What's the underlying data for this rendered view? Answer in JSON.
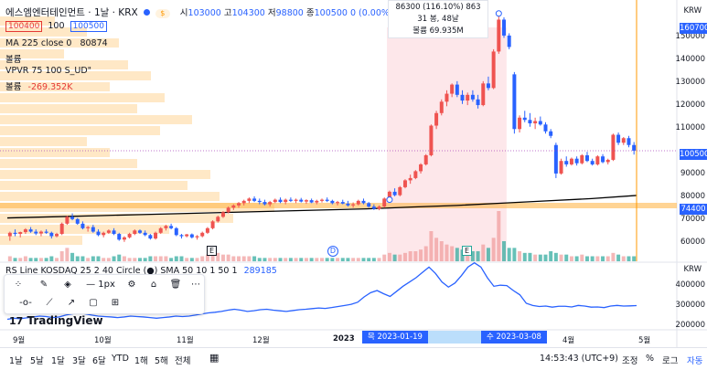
{
  "header": {
    "symbol": "에스엠엔터테인먼트 · 1날 · KRX",
    "open_label": "시",
    "open": "103000",
    "high_label": "고",
    "high": "104300",
    "low_label": "저",
    "low": "98800",
    "close_label": "종",
    "close": "100500",
    "change": "0 (0.00%)",
    "sell_price": "100400",
    "spread": "100",
    "buy_price": "100500",
    "currency": "KRW"
  },
  "indicators": {
    "ma": "MA 225 close 0",
    "ma_value": "80874",
    "volume_label_1": "볼륨",
    "vpvr": "VPVR 75 100 S_UD\"",
    "volume_label_2": "볼륨",
    "vpvr_value": "-269.352K",
    "rs_line": "RS Line KOSDAQ 25 2 40 Circle (●) SMA 50 10 1 50 1",
    "rs_value": "289185"
  },
  "tooltip": {
    "line1": "86300 (116.10%) 863",
    "line2": "31 봉, 48날",
    "line3": "볼륨 69.935M"
  },
  "price_axis": {
    "ticks": [
      "150000",
      "140000",
      "130000",
      "120000",
      "110000",
      "90000",
      "80000",
      "70000",
      "60000"
    ],
    "tag_high": "160700",
    "tag_last": "100500",
    "tag_low": "74400"
  },
  "rs_axis": {
    "unit": "KRW",
    "ticks": [
      "400000",
      "300000",
      "200000"
    ]
  },
  "time_axis": {
    "labels": [
      "9월",
      "10월",
      "11월",
      "12월",
      "2023",
      "4월",
      "5월"
    ],
    "range_start": "목 2023-01-19",
    "range_end": "수 2023-03-08",
    "partial": "월"
  },
  "events": {
    "e1": "E",
    "d1": "D",
    "e2": "E"
  },
  "toolbar_icons": [
    "circle-path-icon",
    "pencil-icon",
    "fill-icon",
    "line-width-icon",
    "settings-icon",
    "lock-icon",
    "trash-icon",
    "more-icon",
    "line-tool-icon",
    "trendline-icon",
    "ray-icon",
    "rect-icon",
    "crosshair-box-icon"
  ],
  "toolbar": {
    "width_label": "1px"
  },
  "logo": "TradingView",
  "bottom": {
    "timeframes": [
      "1날",
      "5날",
      "1달",
      "3달",
      "6달",
      "YTD",
      "1해",
      "5해",
      "전체"
    ],
    "clock": "14:53:43 (UTC+9)",
    "adj": "조정",
    "pct": "%",
    "log": "로그",
    "auto": "자동"
  },
  "colors": {
    "up": "#ef5350",
    "down": "#2962ff",
    "ma": "#000000",
    "vpvr": "#ffcc80",
    "range": "#fde7ea",
    "rs": "#2962ff"
  },
  "chart_data": {
    "type": "candlestick",
    "price_candles": [
      [
        63000,
        65000,
        61000,
        64500
      ],
      [
        64500,
        66000,
        63000,
        64000
      ],
      [
        64000,
        65000,
        62500,
        64800
      ],
      [
        64800,
        66500,
        64000,
        66000
      ],
      [
        66000,
        67000,
        64500,
        65000
      ],
      [
        65000,
        66000,
        63500,
        64200
      ],
      [
        64200,
        65500,
        63000,
        65000
      ],
      [
        65000,
        66000,
        64000,
        64500
      ],
      [
        64500,
        65000,
        62000,
        63000
      ],
      [
        63000,
        64500,
        62500,
        64000
      ],
      [
        64000,
        69000,
        63500,
        68500
      ],
      [
        68500,
        72000,
        68000,
        71500
      ],
      [
        71500,
        73000,
        70000,
        70500
      ],
      [
        70500,
        71000,
        68000,
        68500
      ],
      [
        68500,
        69500,
        66000,
        66500
      ],
      [
        66500,
        67500,
        65000,
        67000
      ],
      [
        67000,
        68000,
        64500,
        65000
      ],
      [
        65000,
        66000,
        63000,
        63500
      ],
      [
        63500,
        65000,
        62500,
        64500
      ],
      [
        64500,
        66000,
        64000,
        65500
      ],
      [
        65500,
        66500,
        63500,
        64000
      ],
      [
        64000,
        64500,
        61000,
        61500
      ],
      [
        61500,
        63000,
        60500,
        62500
      ],
      [
        62500,
        64500,
        62000,
        64000
      ],
      [
        64000,
        66000,
        63500,
        65500
      ],
      [
        65500,
        66000,
        64000,
        64500
      ],
      [
        64500,
        65500,
        63000,
        63500
      ],
      [
        63500,
        64000,
        61500,
        62000
      ],
      [
        62000,
        65000,
        61500,
        64500
      ],
      [
        64500,
        67000,
        64000,
        66500
      ],
      [
        66500,
        68000,
        65500,
        67500
      ],
      [
        67500,
        68500,
        66000,
        66500
      ],
      [
        66500,
        67000,
        63000,
        63500
      ],
      [
        63500,
        64000,
        62000,
        63000
      ],
      [
        63000,
        64000,
        62500,
        63800
      ],
      [
        63800,
        64200,
        62000,
        62500
      ],
      [
        62500,
        63500,
        61500,
        63000
      ],
      [
        63000,
        65000,
        62500,
        64500
      ],
      [
        64500,
        67000,
        64000,
        66500
      ],
      [
        66500,
        70000,
        66000,
        69500
      ],
      [
        69500,
        72000,
        69000,
        71500
      ],
      [
        71500,
        74000,
        71000,
        73500
      ],
      [
        73500,
        76000,
        73000,
        75500
      ],
      [
        75500,
        77000,
        74500,
        76500
      ],
      [
        76500,
        78000,
        75500,
        77500
      ],
      [
        77500,
        79000,
        76500,
        78500
      ],
      [
        78500,
        80000,
        77500,
        79500
      ],
      [
        79500,
        80500,
        78000,
        78500
      ],
      [
        78500,
        79500,
        77000,
        78000
      ],
      [
        78000,
        79000,
        76500,
        77000
      ],
      [
        77000,
        78500,
        76000,
        78000
      ],
      [
        78000,
        79500,
        77500,
        79000
      ],
      [
        79000,
        80000,
        77500,
        78000
      ],
      [
        78000,
        79500,
        77000,
        79000
      ],
      [
        79000,
        80000,
        78000,
        78500
      ],
      [
        78500,
        79500,
        77500,
        79000
      ],
      [
        79000,
        79800,
        77800,
        78200
      ],
      [
        78200,
        79200,
        77200,
        78800
      ],
      [
        78800,
        79500,
        77500,
        77800
      ],
      [
        77800,
        79000,
        77000,
        78500
      ],
      [
        78500,
        79500,
        77800,
        79000
      ],
      [
        79000,
        80000,
        78000,
        78500
      ],
      [
        78500,
        79000,
        77000,
        77500
      ],
      [
        77500,
        78500,
        76500,
        78000
      ],
      [
        78000,
        79000,
        77000,
        77300
      ],
      [
        77300,
        78500,
        76000,
        76500
      ],
      [
        76500,
        77800,
        75500,
        77000
      ],
      [
        77000,
        79000,
        76500,
        78500
      ],
      [
        78500,
        79500,
        77000,
        77500
      ],
      [
        77500,
        78000,
        75500,
        76000
      ],
      [
        76000,
        77000,
        74500,
        75000
      ],
      [
        75000,
        76500,
        74400,
        76000
      ],
      [
        76000,
        80000,
        75500,
        79500
      ],
      [
        79500,
        83000,
        79000,
        82500
      ],
      [
        82500,
        84000,
        80500,
        81000
      ],
      [
        81000,
        85000,
        80500,
        84500
      ],
      [
        84500,
        88000,
        84000,
        87500
      ],
      [
        87500,
        90000,
        86000,
        88500
      ],
      [
        88500,
        92000,
        88000,
        91500
      ],
      [
        91500,
        95000,
        90500,
        94500
      ],
      [
        94500,
        99000,
        94000,
        98500
      ],
      [
        98500,
        112000,
        98000,
        111500
      ],
      [
        111500,
        118000,
        110000,
        117000
      ],
      [
        117000,
        123000,
        116000,
        122000
      ],
      [
        122000,
        127000,
        120000,
        125500
      ],
      [
        125500,
        130000,
        124000,
        129500
      ],
      [
        129500,
        131000,
        124000,
        125000
      ],
      [
        125000,
        127000,
        121000,
        122500
      ],
      [
        122500,
        126000,
        120500,
        125000
      ],
      [
        125000,
        127000,
        122000,
        123000
      ],
      [
        123000,
        125000,
        119000,
        120500
      ],
      [
        120500,
        131000,
        120000,
        130000
      ],
      [
        130000,
        133000,
        127000,
        128000
      ],
      [
        128000,
        145000,
        127500,
        144000
      ],
      [
        144000,
        160700,
        143000,
        158000
      ],
      [
        158000,
        159000,
        150000,
        151000
      ],
      [
        151000,
        152000,
        145000,
        146000
      ],
      [
        134000,
        135000,
        108000,
        110000
      ],
      [
        110000,
        116000,
        108500,
        115000
      ],
      [
        115000,
        118000,
        113000,
        114000
      ],
      [
        114000,
        117000,
        111000,
        112500
      ],
      [
        112500,
        115000,
        110000,
        113500
      ],
      [
        113500,
        115500,
        111500,
        112000
      ],
      [
        112000,
        113000,
        108000,
        109000
      ],
      [
        109000,
        110000,
        106000,
        107000
      ],
      [
        103000,
        104000,
        88500,
        90500
      ],
      [
        90500,
        97000,
        90000,
        96000
      ],
      [
        96000,
        98000,
        93500,
        94500
      ],
      [
        94500,
        97500,
        94000,
        97000
      ],
      [
        97000,
        98000,
        94000,
        95000
      ],
      [
        95000,
        99000,
        94500,
        98500
      ],
      [
        98500,
        100000,
        95500,
        96000
      ],
      [
        96000,
        97000,
        94000,
        94500
      ],
      [
        94500,
        98500,
        94000,
        98000
      ],
      [
        98000,
        99000,
        95000,
        95500
      ],
      [
        95500,
        97000,
        94500,
        96500
      ],
      [
        96500,
        108000,
        96000,
        107500
      ],
      [
        107500,
        108500,
        103000,
        104000
      ],
      [
        104000,
        106500,
        103000,
        106000
      ],
      [
        106000,
        107000,
        102000,
        103000
      ],
      [
        103000,
        104300,
        98800,
        100500
      ]
    ],
    "ma_225": [
      71000,
      71500,
      72000,
      72500,
      73000,
      73500,
      74000,
      74500,
      75000,
      75800,
      76500,
      77500,
      78500,
      79500,
      80874
    ],
    "volume_relative": [
      3,
      2,
      2,
      3,
      2,
      2,
      2,
      2,
      3,
      2,
      6,
      8,
      5,
      3,
      3,
      2,
      3,
      3,
      2,
      2,
      3,
      4,
      3,
      2,
      2,
      2,
      2,
      3,
      3,
      3,
      3,
      2,
      3,
      3,
      2,
      2,
      2,
      3,
      4,
      5,
      5,
      4,
      4,
      3,
      3,
      3,
      3,
      3,
      2,
      2,
      2,
      2,
      2,
      2,
      2,
      2,
      2,
      2,
      2,
      2,
      2,
      2,
      2,
      2,
      2,
      2,
      2,
      2,
      2,
      2,
      2,
      2,
      4,
      5,
      4,
      4,
      5,
      6,
      6,
      7,
      9,
      18,
      14,
      12,
      10,
      9,
      8,
      7,
      7,
      6,
      6,
      10,
      8,
      14,
      30,
      12,
      8,
      8,
      6,
      5,
      5,
      4,
      4,
      4,
      6,
      5,
      4,
      4,
      3,
      3,
      4,
      3,
      3,
      3,
      3,
      3,
      5,
      4,
      3,
      3,
      3
    ],
    "rs_line": [
      225000,
      230000,
      228000,
      232000,
      236000,
      240000,
      238000,
      233000,
      236000,
      245000,
      250000,
      255000,
      250000,
      245000,
      240000,
      238000,
      236000,
      233000,
      236000,
      240000,
      238000,
      236000,
      233000,
      230000,
      233000,
      236000,
      240000,
      238000,
      240000,
      245000,
      250000,
      255000,
      258000,
      262000,
      268000,
      272000,
      268000,
      262000,
      265000,
      270000,
      272000,
      268000,
      265000,
      262000,
      266000,
      270000,
      272000,
      275000,
      278000,
      276000,
      280000,
      285000,
      290000,
      295000,
      305000,
      330000,
      350000,
      360000,
      345000,
      332000,
      356000,
      380000,
      400000,
      420000,
      445000,
      470000,
      440000,
      400000,
      376000,
      395000,
      430000,
      470000,
      490000,
      470000,
      420000,
      380000,
      385000,
      383000,
      360000,
      340000,
      300000,
      290000,
      285000,
      287000,
      282000,
      286000,
      286000,
      283000,
      290000,
      287000,
      282000,
      283000,
      280000,
      287000,
      290000,
      287000,
      288000,
      289185
    ],
    "price_axis_range": [
      52000,
      165000
    ],
    "rs_axis_range": [
      180000,
      480000
    ]
  }
}
